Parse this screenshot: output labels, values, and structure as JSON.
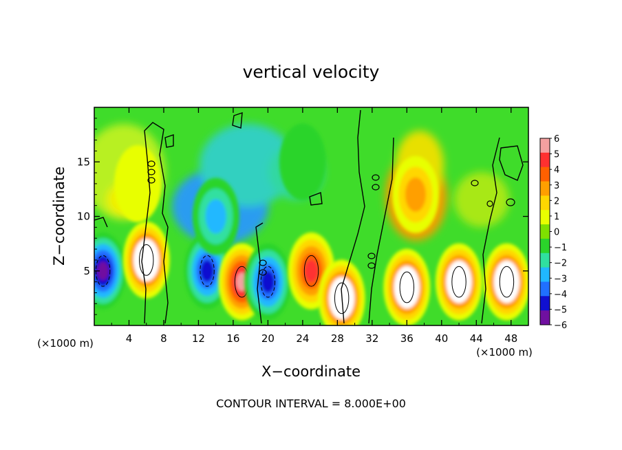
{
  "chart_data": {
    "type": "heatmap",
    "title": "vertical velocity",
    "xlabel": "X−coordinate",
    "ylabel": "Z−coordinate",
    "x_unit_label": "(×1000 m)",
    "y_unit_label": "(×1000 m)",
    "xlim": [
      0,
      50
    ],
    "ylim": [
      0,
      20
    ],
    "x_ticks": [
      4,
      8,
      12,
      16,
      20,
      24,
      28,
      32,
      36,
      40,
      44,
      48
    ],
    "y_ticks": [
      5,
      10,
      15
    ],
    "grid": false,
    "colorbar": {
      "position": "right",
      "levels": [
        6,
        5,
        4,
        3,
        2,
        1,
        0,
        -1,
        -2,
        -3,
        -4,
        -5,
        -6
      ],
      "tick_labels": [
        "6",
        "5",
        "4",
        "3",
        "2",
        "1",
        "0",
        "−1",
        "−2",
        "−3",
        "−4",
        "−5",
        "−6"
      ],
      "colors": [
        "#f4a0a0",
        "#ff3030",
        "#ff6000",
        "#ff9f00",
        "#ffd700",
        "#e8ff00",
        "#7fe000",
        "#2bd42b",
        "#30e0a0",
        "#20b8ff",
        "#2070ff",
        "#1010d0",
        "#7010a0"
      ]
    },
    "annotation": "CONTOUR INTERVAL = 8.000E+00",
    "cells": [
      {
        "x": 1,
        "z": 5,
        "w": -6
      },
      {
        "x": 6,
        "z": 6,
        "w": 7
      },
      {
        "x": 13,
        "z": 5,
        "w": -5
      },
      {
        "x": 17,
        "z": 4,
        "w": 6
      },
      {
        "x": 20,
        "z": 4,
        "w": -5
      },
      {
        "x": 25,
        "z": 5,
        "w": 5
      },
      {
        "x": 28.5,
        "z": 2.5,
        "w": 7
      },
      {
        "x": 36,
        "z": 3.5,
        "w": 7
      },
      {
        "x": 42,
        "z": 4,
        "w": 7
      },
      {
        "x": 47.5,
        "z": 4,
        "w": 7
      },
      {
        "x": 37,
        "z": 12,
        "w": 3
      },
      {
        "x": 14,
        "z": 10,
        "w": -3
      },
      {
        "x": 5,
        "z": 13,
        "w": 1
      },
      {
        "x": 24,
        "z": 15,
        "w": -1
      }
    ]
  }
}
